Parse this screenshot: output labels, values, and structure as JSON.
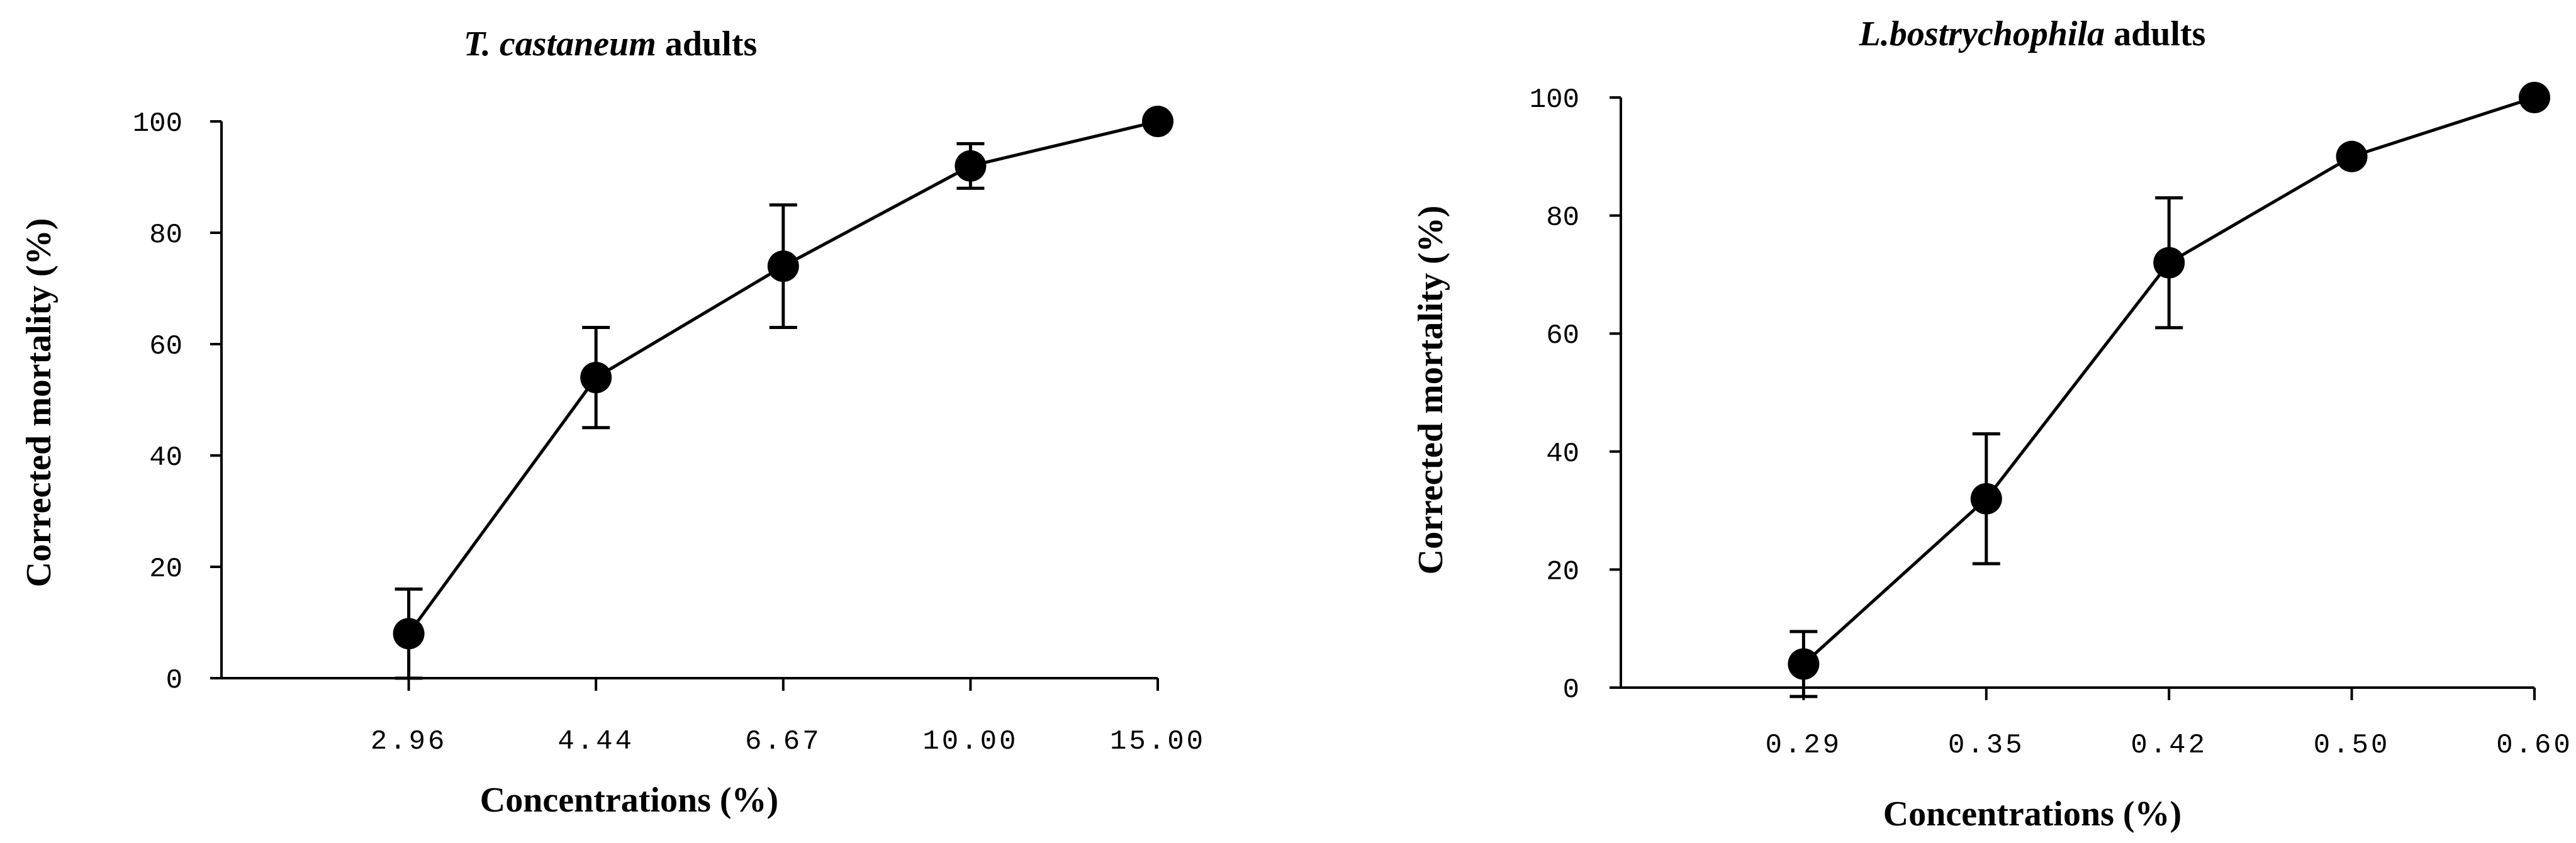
{
  "chart_data": [
    {
      "type": "line",
      "title_italic": "T. castaneum",
      "title_rest": " adults",
      "xlabel": "Concentrations (%)",
      "ylabel": "Corrected mortality (%)",
      "ylim": [
        0,
        100
      ],
      "yticks": [
        "0",
        "20",
        "40",
        "60",
        "80",
        "100"
      ],
      "ytick_values": [
        0,
        20,
        40,
        60,
        80,
        100
      ],
      "categories": [
        "2.96",
        "4.44",
        "6.67",
        "10.00",
        "15.00"
      ],
      "series": [
        {
          "values": [
            8,
            54,
            74,
            92,
            100
          ],
          "errors": [
            8,
            9,
            11,
            4,
            0
          ]
        }
      ],
      "grid": false,
      "legend": "none"
    },
    {
      "type": "line",
      "title_italic": "L.bostrychophila",
      "title_rest": " adults",
      "xlabel": "Concentrations (%)",
      "ylabel": "Corrected mortality (%)",
      "ylim": [
        0,
        100
      ],
      "yticks": [
        "0",
        "20",
        "40",
        "60",
        "80",
        "100"
      ],
      "ytick_values": [
        0,
        20,
        40,
        60,
        80,
        100
      ],
      "categories": [
        "0.29",
        "0.35",
        "0.42",
        "0.50",
        "0.60"
      ],
      "series": [
        {
          "values": [
            4,
            32,
            72,
            90,
            100
          ],
          "errors": [
            5.5,
            11,
            11,
            0,
            0
          ]
        }
      ],
      "grid": false,
      "legend": "none"
    }
  ]
}
